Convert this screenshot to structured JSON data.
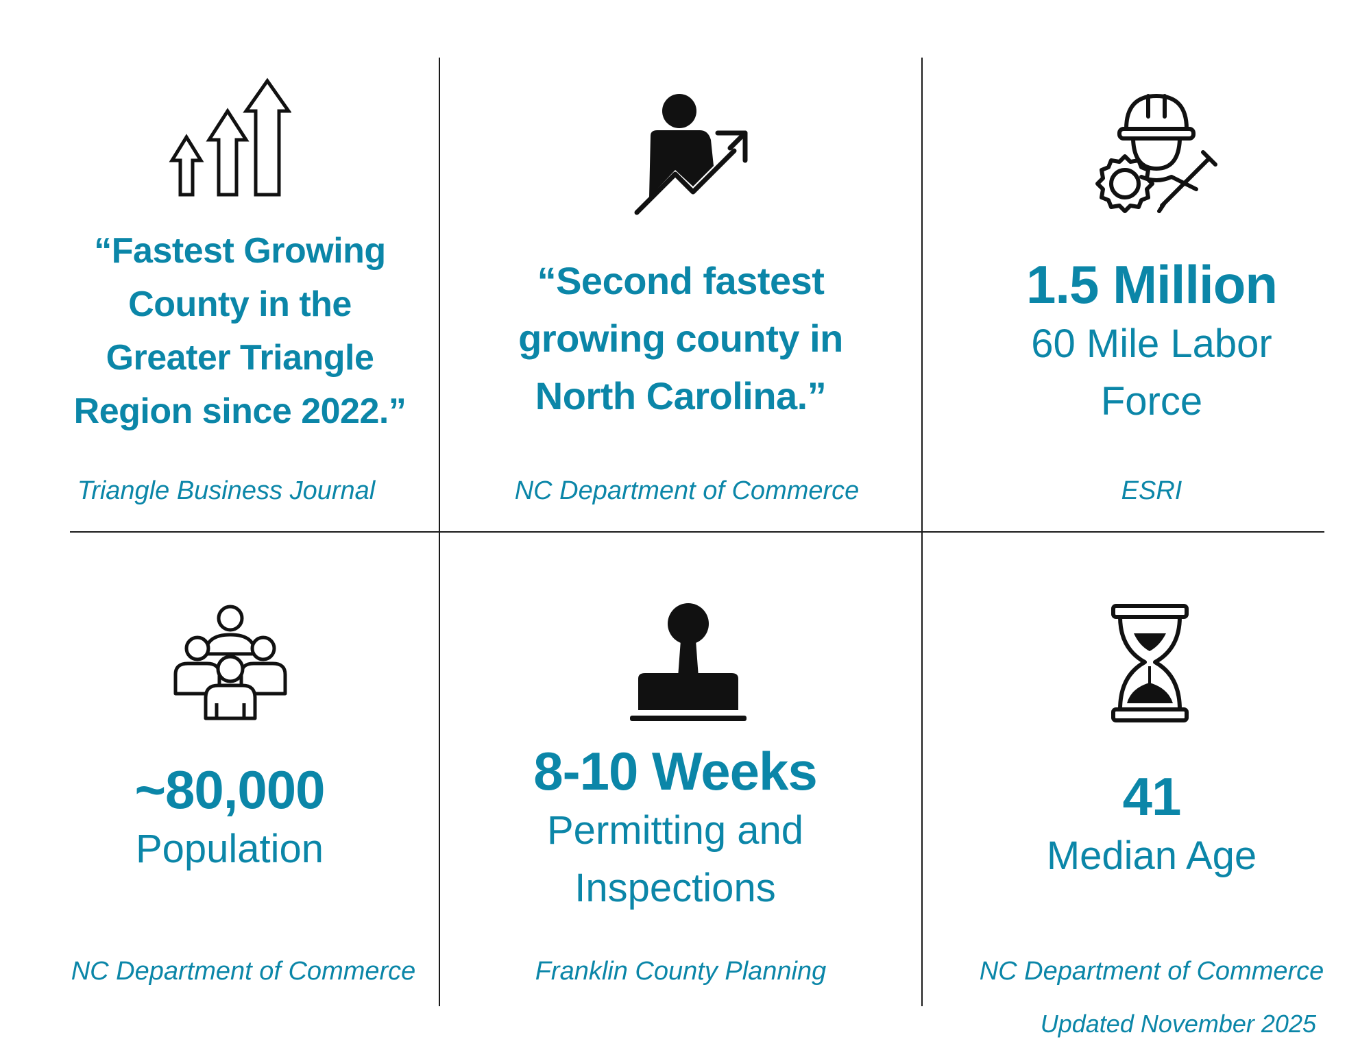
{
  "colors": {
    "accent": "#0b86a8",
    "divider": "#1a1a1a",
    "icon": "#111111"
  },
  "cells": [
    {
      "icon": "rising-arrows-icon",
      "headline": [
        "“Fastest Growing",
        "County in the",
        "Greater Triangle",
        "Region since 2022.”"
      ],
      "source": "Triangle Business Journal"
    },
    {
      "icon": "person-growth-arrow-icon",
      "headline": [
        "“Second fastest",
        "growing county in",
        "North Carolina.”"
      ],
      "source": "NC Department of Commerce"
    },
    {
      "icon": "worker-gear-wrench-icon",
      "value": "1.5 Million",
      "label": [
        "60 Mile Labor",
        "Force"
      ],
      "source": "ESRI"
    },
    {
      "icon": "group-of-people-icon",
      "value": "~80,000",
      "label": [
        "Population"
      ],
      "source": "NC Department of Commerce"
    },
    {
      "icon": "rubber-stamp-icon",
      "value": "8-10 Weeks",
      "label": [
        "Permitting and",
        "Inspections"
      ],
      "source": "Franklin County Planning"
    },
    {
      "icon": "hourglass-icon",
      "value": "41",
      "label": [
        "Median Age"
      ],
      "source": "NC Department of Commerce"
    }
  ],
  "footer": {
    "updated": "Updated November 2025"
  }
}
